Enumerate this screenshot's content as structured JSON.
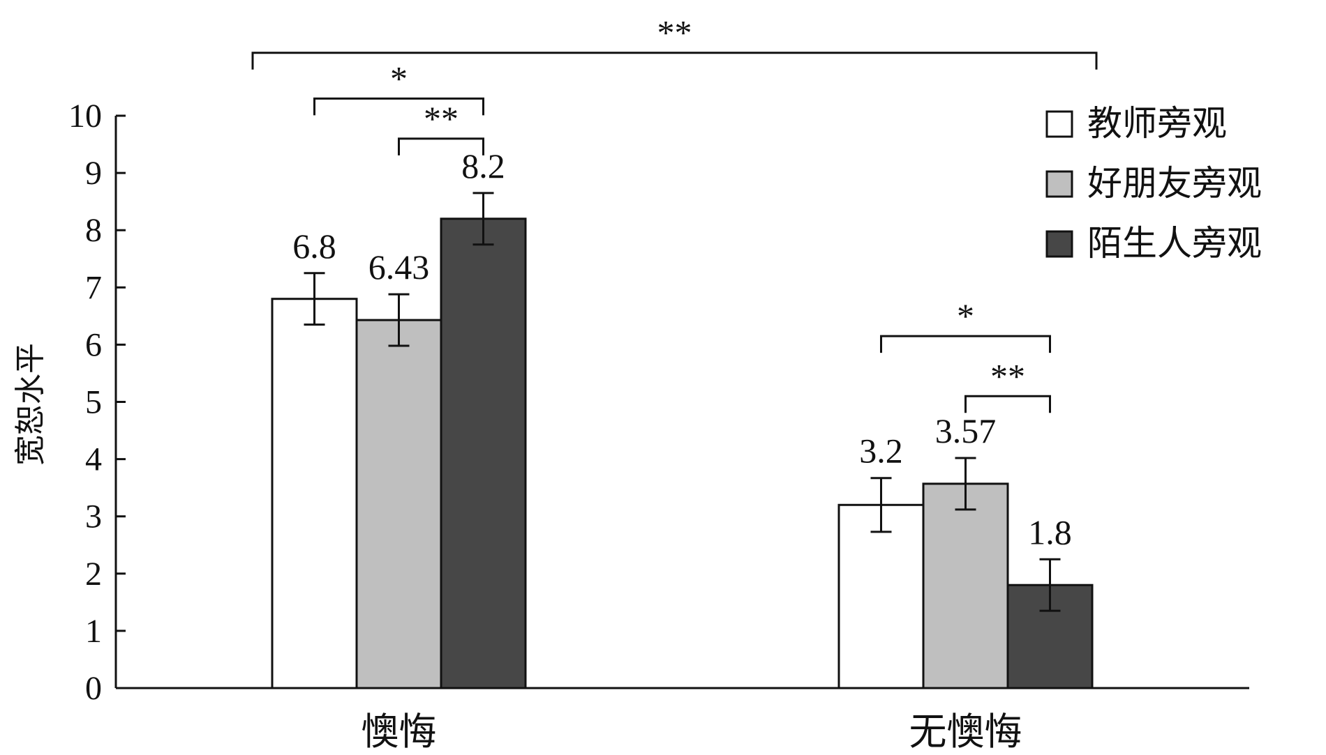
{
  "chart_data": {
    "type": "bar",
    "title": "",
    "xlabel": "",
    "ylabel": "宽恕水平",
    "ylim": [
      0,
      10
    ],
    "yticks": [
      0,
      1,
      2,
      3,
      4,
      5,
      6,
      7,
      8,
      9,
      10
    ],
    "ytick_labels": [
      "0",
      "1",
      "2",
      "3",
      "4",
      "5",
      "6",
      "7",
      "8",
      "9",
      "10"
    ],
    "categories": [
      "懊悔",
      "无懊悔"
    ],
    "series": [
      {
        "name": "教师旁观",
        "color": "#ffffff",
        "values": [
          6.8,
          3.2
        ],
        "errors": [
          0.45,
          0.47
        ],
        "labels": [
          "6.8",
          "3.2"
        ]
      },
      {
        "name": "好朋友旁观",
        "color": "#bfbfbf",
        "values": [
          6.43,
          3.57
        ],
        "errors": [
          0.45,
          0.45
        ],
        "labels": [
          "6.43",
          "3.57"
        ]
      },
      {
        "name": "陌生人旁观",
        "color": "#474747",
        "values": [
          8.2,
          1.8
        ],
        "errors": [
          0.45,
          0.45
        ],
        "labels": [
          "8.2",
          "1.8"
        ]
      }
    ],
    "legend": {
      "position": "top-right"
    },
    "grid": false,
    "significance": [
      {
        "label": "**",
        "from": {
          "category": 0,
          "series": -1
        },
        "to": {
          "category": 1,
          "series": 3
        },
        "y": 11.1
      },
      {
        "label": "*",
        "from": {
          "category": 0,
          "series": 0
        },
        "to": {
          "category": 0,
          "series": 2
        },
        "y": 10.3
      },
      {
        "label": "**",
        "from": {
          "category": 0,
          "series": 1
        },
        "to": {
          "category": 0,
          "series": 2
        },
        "y": 9.6
      },
      {
        "label": "*",
        "from": {
          "category": 1,
          "series": 0
        },
        "to": {
          "category": 1,
          "series": 2
        },
        "y": 6.15
      },
      {
        "label": "**",
        "from": {
          "category": 1,
          "series": 1
        },
        "to": {
          "category": 1,
          "series": 2
        },
        "y": 5.1
      }
    ]
  }
}
